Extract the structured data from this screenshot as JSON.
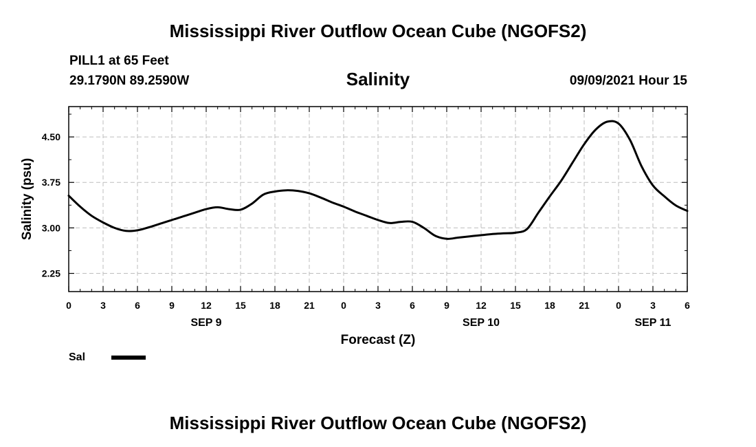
{
  "header": {
    "title": "Mississippi River Outflow Ocean Cube (NGOFS2)",
    "station": "PILL1 at 65 Feet",
    "coords": "29.1790N  89.2590W",
    "variable": "Salinity",
    "timestamp": "09/09/2021 Hour 15"
  },
  "footer": {
    "title": "Mississippi River Outflow Ocean Cube (NGOFS2)"
  },
  "legend": {
    "label": "Sal",
    "color": "#000000"
  },
  "chart_data": {
    "type": "line",
    "title": "Salinity",
    "xlabel": "Forecast (Z)",
    "ylabel": "Salinity (psu)",
    "xlim": [
      0,
      54
    ],
    "ylim": [
      1.95,
      5.0
    ],
    "grid": true,
    "x_ticks": [
      {
        "x": 0,
        "label": "0"
      },
      {
        "x": 3,
        "label": "3"
      },
      {
        "x": 6,
        "label": "6"
      },
      {
        "x": 9,
        "label": "9"
      },
      {
        "x": 12,
        "label": "12"
      },
      {
        "x": 15,
        "label": "15"
      },
      {
        "x": 18,
        "label": "18"
      },
      {
        "x": 21,
        "label": "21"
      },
      {
        "x": 24,
        "label": "0"
      },
      {
        "x": 27,
        "label": "3"
      },
      {
        "x": 30,
        "label": "6"
      },
      {
        "x": 33,
        "label": "9"
      },
      {
        "x": 36,
        "label": "12"
      },
      {
        "x": 39,
        "label": "15"
      },
      {
        "x": 42,
        "label": "18"
      },
      {
        "x": 45,
        "label": "21"
      },
      {
        "x": 48,
        "label": "0"
      },
      {
        "x": 51,
        "label": "3"
      },
      {
        "x": 54,
        "label": "6"
      }
    ],
    "date_labels": [
      {
        "x": 12,
        "label": "SEP 9"
      },
      {
        "x": 36,
        "label": "SEP 10"
      },
      {
        "x": 51,
        "label": "SEP 11"
      }
    ],
    "y_ticks": [
      {
        "y": 2.25,
        "label": "2.25"
      },
      {
        "y": 3.0,
        "label": "3.00"
      },
      {
        "y": 3.75,
        "label": "3.75"
      },
      {
        "y": 4.5,
        "label": "4.50"
      }
    ],
    "series": [
      {
        "name": "Sal",
        "x": [
          0,
          1,
          2,
          3,
          4,
          5,
          6,
          7,
          8,
          9,
          10,
          11,
          12,
          13,
          14,
          15,
          16,
          17,
          18,
          19,
          20,
          21,
          22,
          23,
          24,
          25,
          26,
          27,
          28,
          29,
          30,
          31,
          32,
          33,
          34,
          35,
          36,
          37,
          38,
          39,
          40,
          41,
          42,
          43,
          44,
          45,
          46,
          47,
          48,
          49,
          50,
          51,
          52,
          53,
          54
        ],
        "y": [
          3.53,
          3.35,
          3.2,
          3.09,
          3.0,
          2.95,
          2.96,
          3.01,
          3.07,
          3.13,
          3.19,
          3.25,
          3.31,
          3.34,
          3.31,
          3.3,
          3.4,
          3.55,
          3.6,
          3.62,
          3.61,
          3.57,
          3.5,
          3.42,
          3.35,
          3.27,
          3.2,
          3.13,
          3.08,
          3.1,
          3.1,
          3.0,
          2.87,
          2.82,
          2.84,
          2.86,
          2.88,
          2.9,
          2.91,
          2.92,
          2.98,
          3.25,
          3.52,
          3.78,
          4.08,
          4.38,
          4.62,
          4.75,
          4.72,
          4.45,
          4.02,
          3.7,
          3.52,
          3.37,
          3.28
        ]
      }
    ]
  }
}
